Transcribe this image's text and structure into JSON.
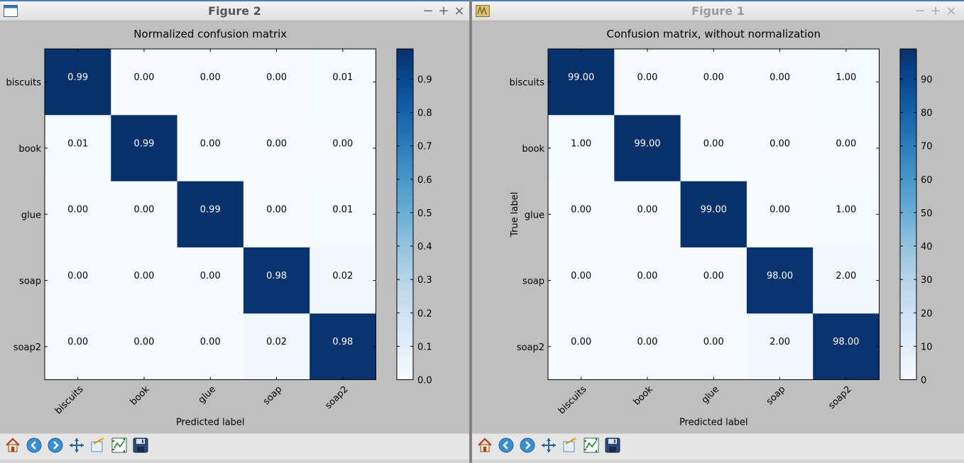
{
  "windows": [
    {
      "id": "left",
      "title": "Figure 2",
      "controls": [
        "−",
        "+",
        "×"
      ],
      "chart_data": {
        "type": "heatmap",
        "title": "Normalized confusion matrix",
        "xlabel": "Predicted label",
        "ylabel": "",
        "rows": [
          "biscuits",
          "book",
          "glue",
          "soap",
          "soap2"
        ],
        "columns": [
          "biscuits",
          "book",
          "glue",
          "soap",
          "soap2"
        ],
        "values": [
          [
            0.99,
            0.0,
            0.0,
            0.0,
            0.01
          ],
          [
            0.01,
            0.99,
            0.0,
            0.0,
            0.0
          ],
          [
            0.0,
            0.0,
            0.99,
            0.0,
            0.01
          ],
          [
            0.0,
            0.0,
            0.0,
            0.98,
            0.02
          ],
          [
            0.0,
            0.0,
            0.0,
            0.02,
            0.98
          ]
        ],
        "cell_labels": [
          [
            "0.99",
            "0.00",
            "0.00",
            "0.00",
            "0.01"
          ],
          [
            "0.01",
            "0.99",
            "0.00",
            "0.00",
            "0.00"
          ],
          [
            "0.00",
            "0.00",
            "0.99",
            "0.00",
            "0.01"
          ],
          [
            "0.00",
            "0.00",
            "0.00",
            "0.98",
            "0.02"
          ],
          [
            "0.00",
            "0.00",
            "0.00",
            "0.02",
            "0.98"
          ]
        ],
        "colorbar": {
          "min": 0.0,
          "max": 0.99,
          "ticks": [
            0.0,
            0.1,
            0.2,
            0.3,
            0.4,
            0.5,
            0.6,
            0.7,
            0.8,
            0.9
          ],
          "tick_labels": [
            "0.0",
            "0.1",
            "0.2",
            "0.3",
            "0.4",
            "0.5",
            "0.6",
            "0.7",
            "0.8",
            "0.9"
          ]
        },
        "colormap": "Blues"
      }
    },
    {
      "id": "right",
      "title": "Figure 1",
      "controls": [
        "−",
        "+",
        "×"
      ],
      "chart_data": {
        "type": "heatmap",
        "title": "Confusion matrix, without normalization",
        "xlabel": "Predicted label",
        "ylabel": "True label",
        "rows": [
          "biscuits",
          "book",
          "glue",
          "soap",
          "soap2"
        ],
        "columns": [
          "biscuits",
          "book",
          "glue",
          "soap",
          "soap2"
        ],
        "values": [
          [
            99,
            0,
            0,
            0,
            1
          ],
          [
            1,
            99,
            0,
            0,
            0
          ],
          [
            0,
            0,
            99,
            0,
            1
          ],
          [
            0,
            0,
            0,
            98,
            2
          ],
          [
            0,
            0,
            0,
            2,
            98
          ]
        ],
        "cell_labels": [
          [
            "99.00",
            "0.00",
            "0.00",
            "0.00",
            "1.00"
          ],
          [
            "1.00",
            "99.00",
            "0.00",
            "0.00",
            "0.00"
          ],
          [
            "0.00",
            "0.00",
            "99.00",
            "0.00",
            "1.00"
          ],
          [
            "0.00",
            "0.00",
            "0.00",
            "98.00",
            "2.00"
          ],
          [
            "0.00",
            "0.00",
            "0.00",
            "2.00",
            "98.00"
          ]
        ],
        "colorbar": {
          "min": 0,
          "max": 99,
          "ticks": [
            0,
            10,
            20,
            30,
            40,
            50,
            60,
            70,
            80,
            90
          ],
          "tick_labels": [
            "0",
            "10",
            "20",
            "30",
            "40",
            "50",
            "60",
            "70",
            "80",
            "90"
          ]
        },
        "colormap": "Blues"
      }
    }
  ],
  "toolbar": {
    "buttons": [
      {
        "name": "home-button",
        "icon": "home-icon"
      },
      {
        "name": "back-button",
        "icon": "back-arrow-icon"
      },
      {
        "name": "forward-button",
        "icon": "forward-arrow-icon"
      },
      {
        "name": "pan-button",
        "icon": "pan-icon"
      },
      {
        "name": "zoom-button",
        "icon": "zoom-rect-icon"
      },
      {
        "name": "subplots-button",
        "icon": "subplots-icon"
      },
      {
        "name": "save-button",
        "icon": "save-icon"
      }
    ]
  },
  "colors": {
    "dark_blue": "#08306b",
    "light_blue": "#f7fbff",
    "background": "#bfbfbf"
  }
}
